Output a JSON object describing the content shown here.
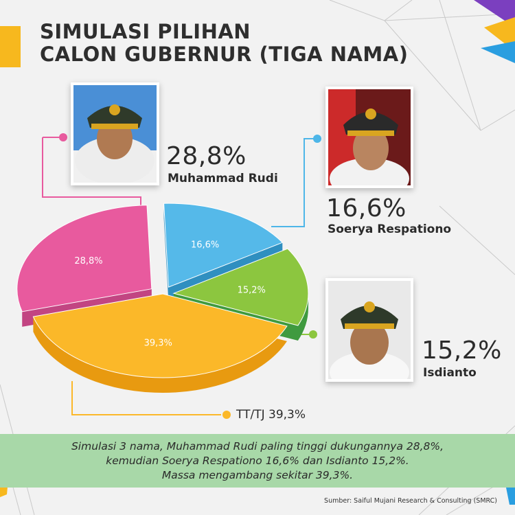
{
  "title": {
    "line1": "SIMULASI PILIHAN",
    "line2": "CALON GUBERNUR (TIGA NAMA)"
  },
  "callouts": [
    {
      "pct": "28,8%",
      "name": "Muhammad Rudi",
      "color": "#e85a9e"
    },
    {
      "pct": "16,6%",
      "name": "Soerya Respationo",
      "color": "#4db6e8"
    },
    {
      "pct": "15,2%",
      "name": "Isdianto",
      "color": "#8cc63f"
    }
  ],
  "other_label": "TT/TJ 39,3%",
  "chart_data": {
    "type": "pie",
    "categories": [
      "Muhammad Rudi",
      "Soerya Respationo",
      "Isdianto",
      "TT/TJ"
    ],
    "values": [
      28.8,
      16.6,
      15.2,
      39.3
    ],
    "labels": [
      "28,8%",
      "16,6%",
      "15,2%",
      "39,3%"
    ],
    "colors": [
      "#e85a9e",
      "#55b9e9",
      "#8cc63f",
      "#fbb829"
    ],
    "side_colors": [
      "#c24582",
      "#2f8fc0",
      "#3f9a3f",
      "#e89a10"
    ],
    "exploded": [
      "Muhammad Rudi",
      "Soerya Respationo",
      "Isdianto"
    ],
    "style": "3d"
  },
  "footer": {
    "line1": "Simulasi 3 nama, Muhammad Rudi paling tinggi dukungannya 28,8%,",
    "line2": "kemudian Soerya Respationo 16,6% dan Isdianto 15,2%.",
    "line3": "Massa mengambang sekitar 39,3%."
  },
  "source": "Sumber: Saiful Mujani Research & Consulting (SMRC)",
  "icons": {
    "emblem": "garuda-emblem-icon"
  }
}
